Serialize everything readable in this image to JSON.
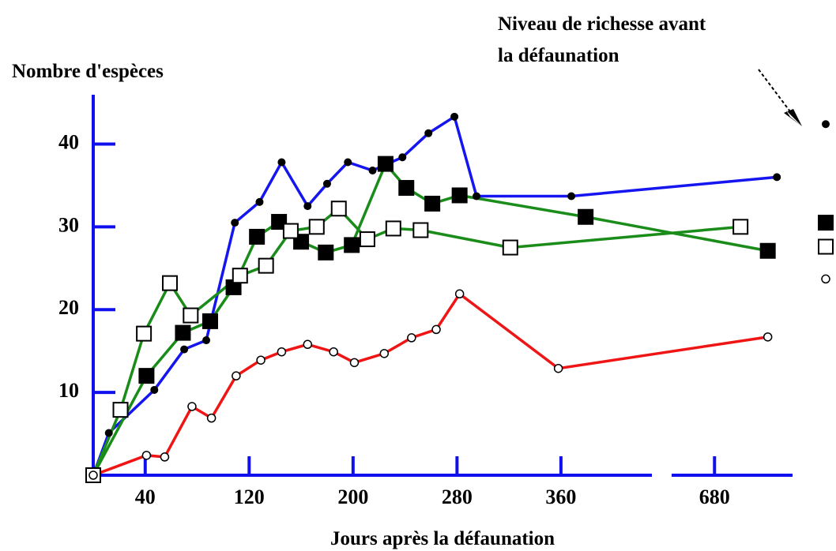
{
  "chart_data": {
    "type": "line",
    "y_axis_label": "Nombre d'espèces",
    "x_axis_label": "Jours après la défaunation",
    "annotation": [
      "Niveau de richesse avant",
      "la défaunation"
    ],
    "xlim": [
      0,
      740
    ],
    "x_break": [
      430,
      647
    ],
    "ylim": [
      0,
      45
    ],
    "xticks": [
      40,
      120,
      200,
      280,
      360,
      680
    ],
    "yticks": [
      10,
      20,
      30,
      40
    ],
    "axis_color": "#1010ee",
    "series": [
      {
        "color": "#1515f0",
        "marker": "dot",
        "before": 42.4,
        "x": [
          0,
          12,
          47,
          70,
          87,
          109,
          128,
          145,
          165,
          180,
          196,
          215,
          238,
          258,
          278,
          295,
          368,
          728
        ],
        "values": [
          0,
          5.1,
          10.3,
          15.2,
          16.3,
          30.5,
          33,
          37.8,
          32.5,
          35.2,
          37.8,
          36.8,
          38.4,
          41.3,
          43.3,
          33.7,
          33.7,
          36
        ]
      },
      {
        "color": "#1a8c1a",
        "marker": "filled-square",
        "before": 30.5,
        "x": [
          0,
          41,
          69,
          90,
          108,
          126,
          143,
          160,
          179,
          199,
          225,
          241,
          261,
          282,
          379,
          721
        ],
        "values": [
          0,
          12,
          17.2,
          18.6,
          22.7,
          28.8,
          30.6,
          28.2,
          26.9,
          27.8,
          37.6,
          34.7,
          32.8,
          33.8,
          31.2,
          27.1
        ]
      },
      {
        "color": "#1a8c1a",
        "marker": "open-square",
        "before": 27.6,
        "x": [
          0,
          21,
          39,
          59,
          75,
          113,
          133,
          152,
          172,
          189,
          211,
          231,
          252,
          321,
          700
        ],
        "values": [
          0,
          7.9,
          17.1,
          23.2,
          19.3,
          24.1,
          25.3,
          29.5,
          30,
          32.2,
          28.5,
          29.8,
          29.6,
          27.5,
          30
        ]
      },
      {
        "color": "#f01515",
        "marker": "open-circle",
        "before": 23.7,
        "x": [
          0,
          41,
          55,
          76,
          91,
          110,
          129,
          145,
          165,
          185,
          201,
          224,
          245,
          264,
          282,
          358,
          721
        ],
        "values": [
          0,
          2.4,
          2.2,
          8.3,
          6.9,
          12,
          13.9,
          14.9,
          15.8,
          14.9,
          13.6,
          14.7,
          16.6,
          17.6,
          21.9,
          12.9,
          16.7
        ]
      }
    ]
  }
}
